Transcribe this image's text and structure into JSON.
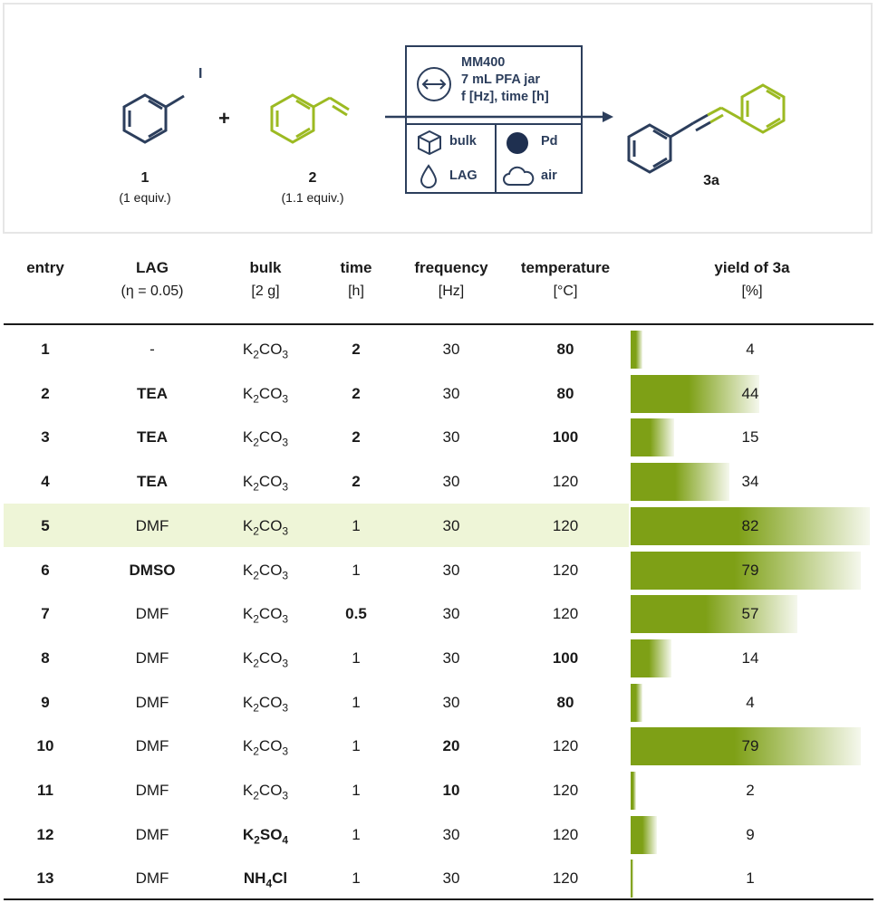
{
  "scheme": {
    "reactant1": {
      "number": "1",
      "equiv": "(1 equiv.)",
      "substituent": "I"
    },
    "reactant2": {
      "number": "2",
      "equiv": "(1.1 equiv.)"
    },
    "plus": "+",
    "product": {
      "number": "3a"
    },
    "conditions": {
      "lines": [
        "MM400",
        "7 mL PFA jar",
        "f [Hz], time [h]"
      ],
      "bulk": "bulk",
      "lag": "LAG",
      "pd": "Pd",
      "air": "air"
    },
    "colors": {
      "navy": "#2c3e5c",
      "green": "#9cba22"
    }
  },
  "table": {
    "headers": [
      {
        "key": "entry",
        "label": "entry",
        "sub": ""
      },
      {
        "key": "lag",
        "label": "LAG",
        "sub": "(η = 0.05)"
      },
      {
        "key": "bulk",
        "label": "bulk",
        "sub": "[2 g]"
      },
      {
        "key": "time",
        "label": "time",
        "sub": "[h]"
      },
      {
        "key": "frequency",
        "label": "frequency",
        "sub": "[Hz]"
      },
      {
        "key": "temperature",
        "label": "temperature",
        "sub": "[°C]"
      },
      {
        "key": "yield",
        "label": "yield of 3a",
        "sub": "[%]"
      }
    ],
    "highlight_entry": "5",
    "bar_color": "#7ea016",
    "rows": [
      {
        "entry": "1",
        "lag": "-",
        "lag_bold": false,
        "bulk": [
          "K",
          "2",
          "CO",
          "3",
          ""
        ],
        "bulk_bold": false,
        "time": "2",
        "time_bold": true,
        "freq": "30",
        "freq_bold": false,
        "temp": "80",
        "temp_bold": true,
        "yield": 4
      },
      {
        "entry": "2",
        "lag": "TEA",
        "lag_bold": true,
        "bulk": [
          "K",
          "2",
          "CO",
          "3",
          ""
        ],
        "bulk_bold": false,
        "time": "2",
        "time_bold": true,
        "freq": "30",
        "freq_bold": false,
        "temp": "80",
        "temp_bold": true,
        "yield": 44
      },
      {
        "entry": "3",
        "lag": "TEA",
        "lag_bold": true,
        "bulk": [
          "K",
          "2",
          "CO",
          "3",
          ""
        ],
        "bulk_bold": false,
        "time": "2",
        "time_bold": true,
        "freq": "30",
        "freq_bold": false,
        "temp": "100",
        "temp_bold": true,
        "yield": 15
      },
      {
        "entry": "4",
        "lag": "TEA",
        "lag_bold": true,
        "bulk": [
          "K",
          "2",
          "CO",
          "3",
          ""
        ],
        "bulk_bold": false,
        "time": "2",
        "time_bold": true,
        "freq": "30",
        "freq_bold": false,
        "temp": "120",
        "temp_bold": false,
        "yield": 34
      },
      {
        "entry": "5",
        "lag": "DMF",
        "lag_bold": false,
        "bulk": [
          "K",
          "2",
          "CO",
          "3",
          ""
        ],
        "bulk_bold": false,
        "time": "1",
        "time_bold": false,
        "freq": "30",
        "freq_bold": false,
        "temp": "120",
        "temp_bold": false,
        "yield": 82
      },
      {
        "entry": "6",
        "lag": "DMSO",
        "lag_bold": true,
        "bulk": [
          "K",
          "2",
          "CO",
          "3",
          ""
        ],
        "bulk_bold": false,
        "time": "1",
        "time_bold": false,
        "freq": "30",
        "freq_bold": false,
        "temp": "120",
        "temp_bold": false,
        "yield": 79
      },
      {
        "entry": "7",
        "lag": "DMF",
        "lag_bold": false,
        "bulk": [
          "K",
          "2",
          "CO",
          "3",
          ""
        ],
        "bulk_bold": false,
        "time": "0.5",
        "time_bold": true,
        "freq": "30",
        "freq_bold": false,
        "temp": "120",
        "temp_bold": false,
        "yield": 57
      },
      {
        "entry": "8",
        "lag": "DMF",
        "lag_bold": false,
        "bulk": [
          "K",
          "2",
          "CO",
          "3",
          ""
        ],
        "bulk_bold": false,
        "time": "1",
        "time_bold": false,
        "freq": "30",
        "freq_bold": false,
        "temp": "100",
        "temp_bold": true,
        "yield": 14
      },
      {
        "entry": "9",
        "lag": "DMF",
        "lag_bold": false,
        "bulk": [
          "K",
          "2",
          "CO",
          "3",
          ""
        ],
        "bulk_bold": false,
        "time": "1",
        "time_bold": false,
        "freq": "30",
        "freq_bold": false,
        "temp": "80",
        "temp_bold": true,
        "yield": 4
      },
      {
        "entry": "10",
        "lag": "DMF",
        "lag_bold": false,
        "bulk": [
          "K",
          "2",
          "CO",
          "3",
          ""
        ],
        "bulk_bold": false,
        "time": "1",
        "time_bold": false,
        "freq": "20",
        "freq_bold": true,
        "temp": "120",
        "temp_bold": false,
        "yield": 79
      },
      {
        "entry": "11",
        "lag": "DMF",
        "lag_bold": false,
        "bulk": [
          "K",
          "2",
          "CO",
          "3",
          ""
        ],
        "bulk_bold": false,
        "time": "1",
        "time_bold": false,
        "freq": "10",
        "freq_bold": true,
        "temp": "120",
        "temp_bold": false,
        "yield": 2
      },
      {
        "entry": "12",
        "lag": "DMF",
        "lag_bold": false,
        "bulk": [
          "K",
          "2",
          "SO",
          "4",
          ""
        ],
        "bulk_bold": true,
        "time": "1",
        "time_bold": false,
        "freq": "30",
        "freq_bold": false,
        "temp": "120",
        "temp_bold": false,
        "yield": 9
      },
      {
        "entry": "13",
        "lag": "DMF",
        "lag_bold": false,
        "bulk": [
          "NH",
          "4",
          "Cl",
          "",
          ""
        ],
        "bulk_bold": true,
        "time": "1",
        "time_bold": false,
        "freq": "30",
        "freq_bold": false,
        "temp": "120",
        "temp_bold": false,
        "yield": 1
      }
    ]
  }
}
